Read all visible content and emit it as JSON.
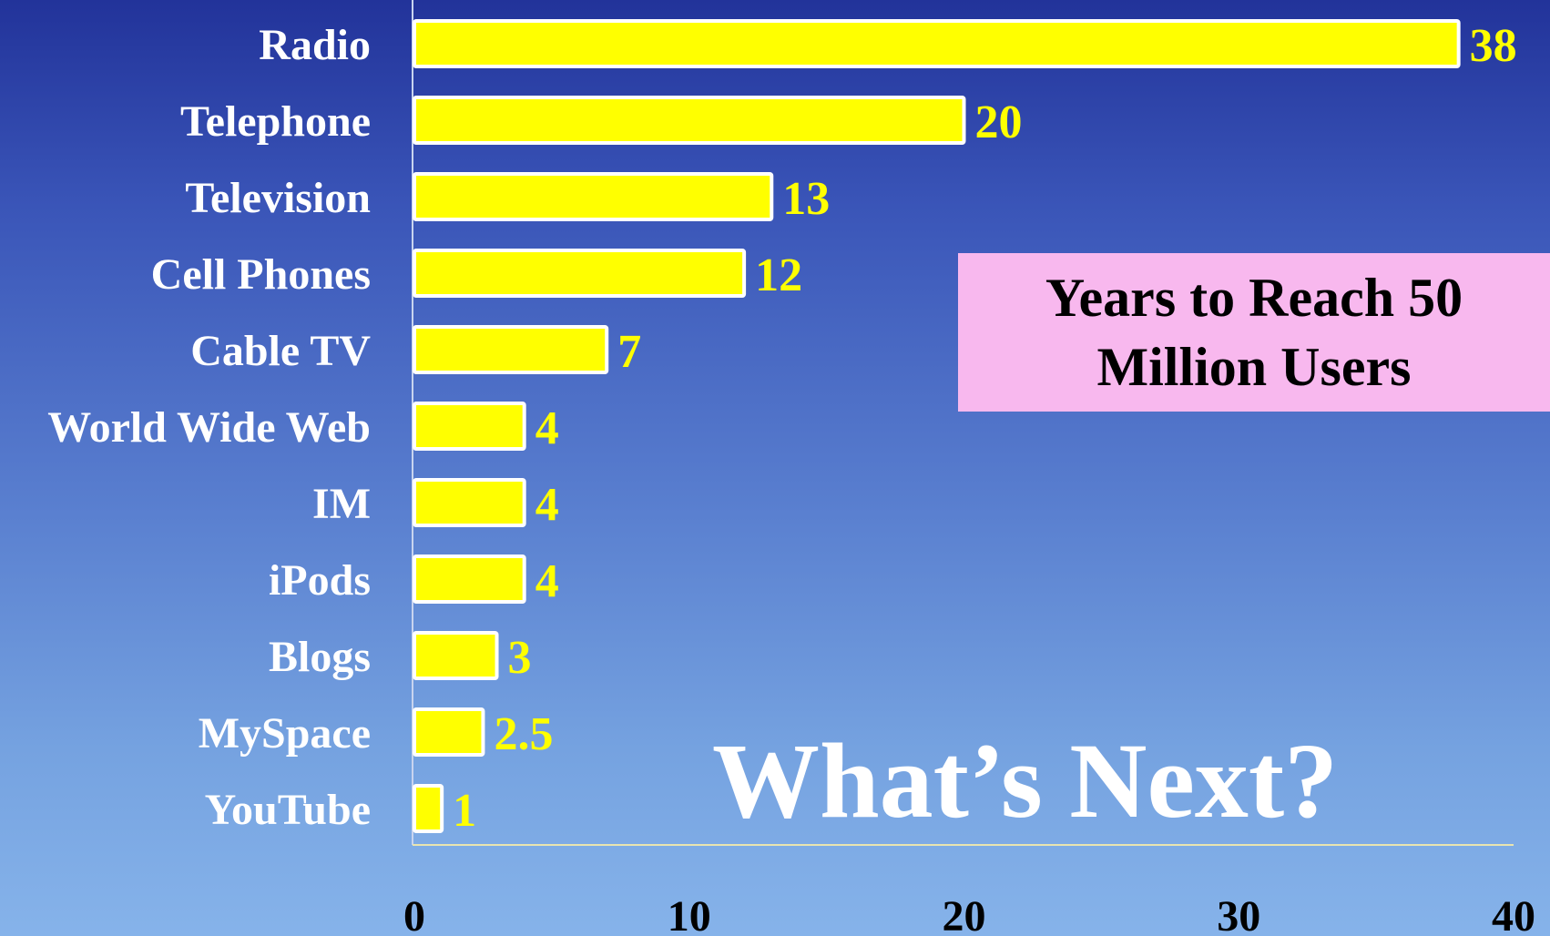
{
  "callout": {
    "line1": "Years to Reach 50",
    "line2": "Million Users",
    "background": "#f8b8ee"
  },
  "headline": "What’s Next?",
  "colors": {
    "bar_fill": "#ffff00",
    "bar_stroke": "#ffffff",
    "value_label": "#ffff00",
    "category_label": "#ffffff",
    "tick_label": "#000000"
  },
  "chart_data": {
    "type": "bar",
    "orientation": "horizontal",
    "categories": [
      "Radio",
      "Telephone",
      "Television",
      "Cell Phones",
      "Cable TV",
      "World Wide Web",
      "IM",
      "iPods",
      "Blogs",
      "MySpace",
      "YouTube"
    ],
    "values": [
      38,
      20,
      13,
      12,
      7,
      4,
      4,
      4,
      3,
      2.5,
      1
    ],
    "value_labels": [
      "38",
      "20",
      "13",
      "12",
      "7",
      "4",
      "4",
      "4",
      "3",
      "2.5",
      "1"
    ],
    "xlim": [
      0,
      40
    ],
    "xticks": [
      "0",
      "10",
      "20",
      "30",
      "40"
    ],
    "grid": false,
    "legend": "none"
  }
}
